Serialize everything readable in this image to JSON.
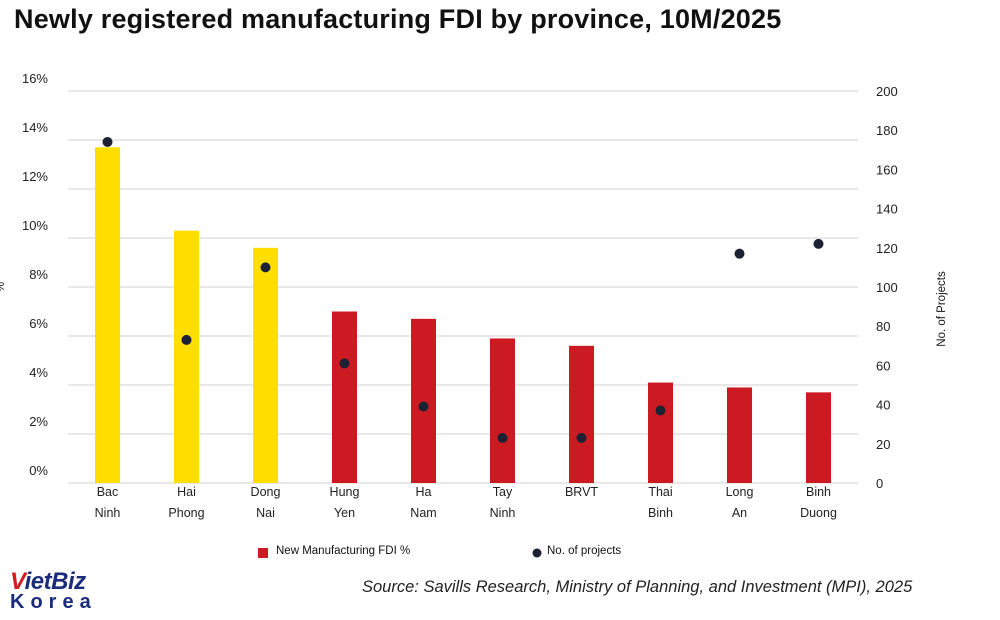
{
  "title": "Newly registered manufacturing FDI by province, 10M/2025",
  "source": "Source: Savills Research, Ministry of Planning, and Investment (MPI), 2025",
  "logo": {
    "v": "V",
    "rest": "ietBiz",
    "bottom": "Korea"
  },
  "colors": {
    "highlight": "#ffde00",
    "bar": "#cc1a22",
    "dot": "#1c2233",
    "grid": "#d0d0d0"
  },
  "chart_data": {
    "type": "bar",
    "categories": [
      [
        "Bac",
        "Ninh"
      ],
      [
        "Hai",
        "Phong"
      ],
      [
        "Dong",
        "Nai"
      ],
      [
        "Hung",
        "Yen"
      ],
      [
        "Ha",
        "Nam"
      ],
      [
        "Tay",
        "Ninh"
      ],
      [
        "BRVT",
        ""
      ],
      [
        "Thai",
        "Binh"
      ],
      [
        "Long",
        "An"
      ],
      [
        "Binh",
        "Duong"
      ]
    ],
    "series": [
      {
        "name": "New Manufacturing FDI %",
        "axis": "left",
        "values": [
          13.7,
          10.3,
          9.6,
          7.0,
          6.7,
          5.9,
          5.6,
          4.1,
          3.9,
          3.7
        ],
        "highlight_first": 3
      },
      {
        "name": "No. of projects",
        "axis": "right",
        "values": [
          174,
          73,
          110,
          61,
          39,
          23,
          23,
          37,
          117,
          122
        ]
      }
    ],
    "ylim_left": [
      0,
      16
    ],
    "yticks_left": [
      "0%",
      "2%",
      "4%",
      "6%",
      "8%",
      "10%",
      "12%",
      "14%",
      "16%"
    ],
    "ylim_right": [
      0,
      200
    ],
    "yticks_right": [
      "0",
      "20",
      "40",
      "60",
      "80",
      "100",
      "120",
      "140",
      "160",
      "180",
      "200"
    ],
    "ylabel_left": "%",
    "ylabel_right": "No. of Projects",
    "legend_position": "bottom"
  }
}
